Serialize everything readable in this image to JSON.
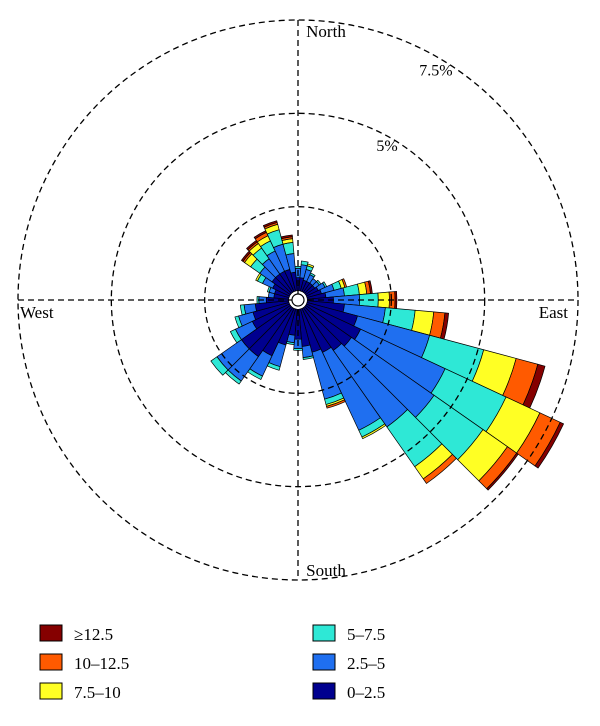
{
  "chart_data": {
    "type": "windrose",
    "directions": {
      "north": "North",
      "east": "East",
      "south": "South",
      "west": "West"
    },
    "ring_labels": [
      {
        "value": 2.5,
        "label": ""
      },
      {
        "value": 5,
        "label": "5%"
      },
      {
        "value": 7.5,
        "label": "7.5%"
      }
    ],
    "max_ring": 7.5,
    "calm_radius_pct": 0.25,
    "bins": [
      {
        "name": "0-2.5",
        "label": "0–2.5",
        "color": "#00008f"
      },
      {
        "name": "2.5-5",
        "label": "2.5–5",
        "color": "#1f6ff0"
      },
      {
        "name": "5-7.5",
        "label": "5–7.5",
        "color": "#2ee8d6"
      },
      {
        "name": "7.5-10",
        "label": "7.5–10",
        "color": "#ffff24"
      },
      {
        "name": "10-12.5",
        "label": "10–12.5",
        "color": "#ff5a00"
      },
      {
        "name": ">=12.5",
        "label": "≥12.5",
        "color": "#850000"
      }
    ],
    "legend": [
      {
        "bin": ">=12.5",
        "label": "≥12.5",
        "color": "#850000"
      },
      {
        "bin": "10-12.5",
        "label": "10–12.5",
        "color": "#ff5a00"
      },
      {
        "bin": "7.5-10",
        "label": "7.5–10",
        "color": "#ffff24"
      },
      {
        "bin": "5-7.5",
        "label": "5–7.5",
        "color": "#2ee8d6"
      },
      {
        "bin": "2.5-5",
        "label": "2.5–5",
        "color": "#1f6ff0"
      },
      {
        "bin": "0-2.5",
        "label": "0–2.5",
        "color": "#00008f"
      }
    ],
    "sectors": [
      {
        "direction_deg": 0,
        "values": [
          0.35,
          0.25,
          0.05,
          0.0,
          0.0,
          0.0
        ]
      },
      {
        "direction_deg": 10,
        "values": [
          0.35,
          0.35,
          0.1,
          0.0,
          0.0,
          0.0
        ]
      },
      {
        "direction_deg": 20,
        "values": [
          0.3,
          0.3,
          0.1,
          0.05,
          0.0,
          0.0
        ]
      },
      {
        "direction_deg": 30,
        "values": [
          0.3,
          0.2,
          0.05,
          0.0,
          0.0,
          0.0
        ]
      },
      {
        "direction_deg": 40,
        "values": [
          0.3,
          0.15,
          0.0,
          0.0,
          0.0,
          0.0
        ]
      },
      {
        "direction_deg": 50,
        "values": [
          0.3,
          0.15,
          0.05,
          0.0,
          0.0,
          0.0
        ]
      },
      {
        "direction_deg": 60,
        "values": [
          0.35,
          0.2,
          0.05,
          0.0,
          0.0,
          0.0
        ]
      },
      {
        "direction_deg": 70,
        "values": [
          0.4,
          0.35,
          0.2,
          0.1,
          0.05,
          0.0
        ]
      },
      {
        "direction_deg": 80,
        "values": [
          0.5,
          0.5,
          0.4,
          0.2,
          0.1,
          0.05
        ]
      },
      {
        "direction_deg": 90,
        "values": [
          0.7,
          0.7,
          0.5,
          0.3,
          0.15,
          0.05
        ]
      },
      {
        "direction_deg": 100,
        "values": [
          1.0,
          1.1,
          0.8,
          0.5,
          0.3,
          0.1
        ]
      },
      {
        "direction_deg": 110,
        "values": [
          1.4,
          2.0,
          1.5,
          0.9,
          0.6,
          0.2
        ]
      },
      {
        "direction_deg": 120,
        "values": [
          1.6,
          2.5,
          1.8,
          1.0,
          0.6,
          0.1
        ]
      },
      {
        "direction_deg": 130,
        "values": [
          1.5,
          2.7,
          1.6,
          0.8,
          0.3,
          0.05
        ]
      },
      {
        "direction_deg": 140,
        "values": [
          1.4,
          2.5,
          1.3,
          0.4,
          0.15,
          0.0
        ]
      },
      {
        "direction_deg": 150,
        "values": [
          1.3,
          2.3,
          0.2,
          0.05,
          0.0,
          0.0
        ]
      },
      {
        "direction_deg": 160,
        "values": [
          1.2,
          1.3,
          0.15,
          0.05,
          0.05,
          0.0
        ]
      },
      {
        "direction_deg": 170,
        "values": [
          1.0,
          0.3,
          0.05,
          0.0,
          0.0,
          0.0
        ]
      },
      {
        "direction_deg": 180,
        "values": [
          0.8,
          0.25,
          0.05,
          0.0,
          0.0,
          0.0
        ]
      },
      {
        "direction_deg": 190,
        "values": [
          0.7,
          0.2,
          0.05,
          0.0,
          0.0,
          0.0
        ]
      },
      {
        "direction_deg": 200,
        "values": [
          1.0,
          0.6,
          0.1,
          0.0,
          0.0,
          0.0
        ]
      },
      {
        "direction_deg": 210,
        "values": [
          1.4,
          0.6,
          0.1,
          0.0,
          0.0,
          0.0
        ]
      },
      {
        "direction_deg": 220,
        "values": [
          1.6,
          0.8,
          0.1,
          0.0,
          0.0,
          0.0
        ]
      },
      {
        "direction_deg": 230,
        "values": [
          1.6,
          0.8,
          0.2,
          0.0,
          0.0,
          0.0
        ]
      },
      {
        "direction_deg": 240,
        "values": [
          1.1,
          0.5,
          0.15,
          0.0,
          0.0,
          0.0
        ]
      },
      {
        "direction_deg": 250,
        "values": [
          1.0,
          0.4,
          0.1,
          0.0,
          0.0,
          0.0
        ]
      },
      {
        "direction_deg": 260,
        "values": [
          0.9,
          0.3,
          0.1,
          0.0,
          0.0,
          0.0
        ]
      },
      {
        "direction_deg": 270,
        "values": [
          0.6,
          0.2,
          0.05,
          0.0,
          0.0,
          0.0
        ]
      },
      {
        "direction_deg": 280,
        "values": [
          0.4,
          0.15,
          0.0,
          0.0,
          0.0,
          0.0
        ]
      },
      {
        "direction_deg": 290,
        "values": [
          0.4,
          0.15,
          0.05,
          0.0,
          0.0,
          0.0
        ]
      },
      {
        "direction_deg": 300,
        "values": [
          0.5,
          0.3,
          0.15,
          0.05,
          0.0,
          0.0
        ]
      },
      {
        "direction_deg": 310,
        "values": [
          0.6,
          0.4,
          0.3,
          0.2,
          0.05,
          0.05
        ]
      },
      {
        "direction_deg": 320,
        "values": [
          0.6,
          0.5,
          0.35,
          0.15,
          0.05,
          0.05
        ]
      },
      {
        "direction_deg": 330,
        "values": [
          0.6,
          0.6,
          0.3,
          0.15,
          0.1,
          0.05
        ]
      },
      {
        "direction_deg": 340,
        "values": [
          0.6,
          0.7,
          0.4,
          0.15,
          0.05,
          0.05
        ]
      },
      {
        "direction_deg": 350,
        "values": [
          0.5,
          0.5,
          0.3,
          0.1,
          0.05,
          0.05
        ]
      }
    ]
  }
}
